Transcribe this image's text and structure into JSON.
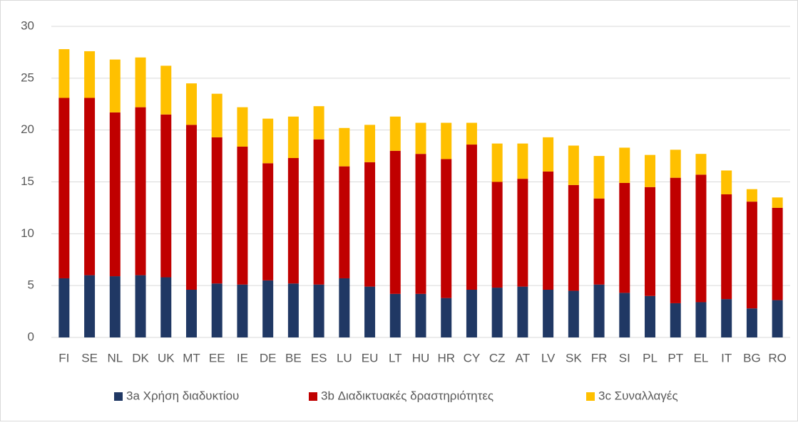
{
  "chart_data": {
    "type": "stacked_bar",
    "categories": [
      "FI",
      "SE",
      "NL",
      "DK",
      "UK",
      "MT",
      "EE",
      "IE",
      "DE",
      "BE",
      "ES",
      "LU",
      "EU",
      "LT",
      "HU",
      "HR",
      "CY",
      "CZ",
      "AT",
      "LV",
      "SK",
      "FR",
      "SI",
      "PL",
      "PT",
      "EL",
      "IT",
      "BG",
      "RO"
    ],
    "series": [
      {
        "name": "3a Χρήση διαδυκτίου",
        "color": "#203864",
        "values": [
          5.7,
          6.0,
          5.9,
          6.0,
          5.8,
          4.6,
          5.2,
          5.1,
          5.5,
          5.2,
          5.1,
          5.7,
          4.9,
          4.2,
          4.2,
          3.8,
          4.6,
          4.8,
          4.9,
          4.6,
          4.5,
          5.1,
          4.3,
          4.0,
          3.3,
          3.4,
          3.7,
          2.8,
          3.6
        ]
      },
      {
        "name": "3b Διαδικτυακές δραστηριότητες",
        "color": "#c00000",
        "values": [
          17.4,
          17.1,
          15.8,
          16.2,
          15.7,
          15.9,
          14.1,
          13.3,
          11.3,
          12.1,
          14.0,
          10.8,
          12.0,
          13.8,
          13.5,
          13.4,
          14.0,
          10.2,
          10.4,
          11.4,
          10.2,
          8.3,
          10.6,
          10.5,
          12.1,
          12.3,
          10.1,
          10.3,
          8.9
        ]
      },
      {
        "name": "3c Συναλλαγές",
        "color": "#ffc000",
        "values": [
          4.7,
          4.5,
          5.1,
          4.8,
          4.7,
          4.0,
          4.2,
          3.8,
          4.3,
          4.0,
          3.2,
          3.7,
          3.6,
          3.3,
          3.0,
          3.5,
          2.1,
          3.7,
          3.4,
          3.3,
          3.8,
          4.1,
          3.4,
          3.1,
          2.7,
          2.0,
          2.3,
          1.2,
          1.0
        ]
      }
    ],
    "ylim": [
      0,
      30
    ],
    "yticks": [
      0,
      5,
      10,
      15,
      20,
      25,
      30
    ],
    "grid": true,
    "legend": "bottom"
  }
}
